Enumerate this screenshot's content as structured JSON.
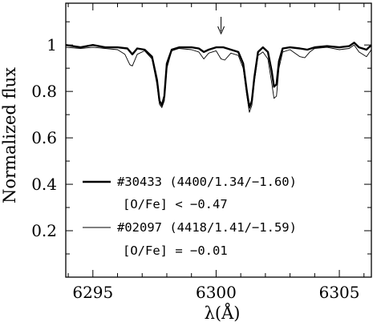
{
  "chart_data": {
    "type": "line",
    "title": "",
    "xlabel": "λ(Å)",
    "ylabel": "Normalized flux",
    "xlim": [
      6293.9,
      6306.3
    ],
    "ylim": [
      0.0,
      1.18
    ],
    "x_ticks": [
      6295,
      6300,
      6305
    ],
    "y_ticks": [
      0.2,
      0.4,
      0.6,
      0.8,
      1
    ],
    "x_tick_labels": [
      "6295",
      "6300",
      "6305"
    ],
    "y_tick_labels": [
      "0.2",
      "0.4",
      "0.6",
      "0.8",
      "1"
    ],
    "grid": false,
    "legend_position": "lower-left",
    "annotation_arrow_x": 6300.2,
    "series": [
      {
        "name": "#30433 (4400/1.34/−1.60)",
        "note": "[O/Fe] < −0.47",
        "style": "thick",
        "color": "#000000",
        "points": [
          [
            6293.9,
            1.0
          ],
          [
            6294.5,
            0.99
          ],
          [
            6295.0,
            1.0
          ],
          [
            6295.5,
            0.99
          ],
          [
            6296.0,
            0.99
          ],
          [
            6296.4,
            0.985
          ],
          [
            6296.6,
            0.96
          ],
          [
            6296.8,
            0.985
          ],
          [
            6297.1,
            0.98
          ],
          [
            6297.4,
            0.95
          ],
          [
            6297.6,
            0.85
          ],
          [
            6297.7,
            0.76
          ],
          [
            6297.8,
            0.74
          ],
          [
            6297.9,
            0.78
          ],
          [
            6298.0,
            0.92
          ],
          [
            6298.2,
            0.98
          ],
          [
            6298.5,
            0.99
          ],
          [
            6299.0,
            0.99
          ],
          [
            6299.3,
            0.985
          ],
          [
            6299.5,
            0.97
          ],
          [
            6299.7,
            0.98
          ],
          [
            6300.0,
            0.99
          ],
          [
            6300.3,
            0.99
          ],
          [
            6300.6,
            0.98
          ],
          [
            6300.9,
            0.97
          ],
          [
            6301.1,
            0.92
          ],
          [
            6301.25,
            0.8
          ],
          [
            6301.35,
            0.73
          ],
          [
            6301.45,
            0.76
          ],
          [
            6301.55,
            0.86
          ],
          [
            6301.7,
            0.97
          ],
          [
            6301.9,
            0.99
          ],
          [
            6302.1,
            0.97
          ],
          [
            6302.25,
            0.89
          ],
          [
            6302.35,
            0.82
          ],
          [
            6302.45,
            0.83
          ],
          [
            6302.55,
            0.93
          ],
          [
            6302.7,
            0.985
          ],
          [
            6303.0,
            0.99
          ],
          [
            6303.4,
            0.985
          ],
          [
            6303.7,
            0.98
          ],
          [
            6304.0,
            0.99
          ],
          [
            6304.5,
            0.995
          ],
          [
            6305.0,
            0.99
          ],
          [
            6305.4,
            0.995
          ],
          [
            6305.6,
            1.01
          ],
          [
            6305.8,
            0.99
          ],
          [
            6306.1,
            0.98
          ],
          [
            6306.3,
            1.0
          ]
        ]
      },
      {
        "name": "#02097 (4418/1.41/−1.59)",
        "note": "[O/Fe] = −0.01",
        "style": "thin",
        "color": "#000000",
        "points": [
          [
            6293.9,
            0.99
          ],
          [
            6294.5,
            0.985
          ],
          [
            6295.0,
            0.99
          ],
          [
            6295.5,
            0.985
          ],
          [
            6296.0,
            0.98
          ],
          [
            6296.3,
            0.96
          ],
          [
            6296.5,
            0.915
          ],
          [
            6296.6,
            0.91
          ],
          [
            6296.8,
            0.96
          ],
          [
            6297.1,
            0.975
          ],
          [
            6297.4,
            0.94
          ],
          [
            6297.6,
            0.83
          ],
          [
            6297.7,
            0.745
          ],
          [
            6297.8,
            0.73
          ],
          [
            6297.9,
            0.76
          ],
          [
            6298.0,
            0.9
          ],
          [
            6298.2,
            0.975
          ],
          [
            6298.5,
            0.985
          ],
          [
            6299.0,
            0.98
          ],
          [
            6299.3,
            0.97
          ],
          [
            6299.5,
            0.94
          ],
          [
            6299.7,
            0.965
          ],
          [
            6300.0,
            0.975
          ],
          [
            6300.2,
            0.94
          ],
          [
            6300.35,
            0.935
          ],
          [
            6300.6,
            0.965
          ],
          [
            6300.9,
            0.955
          ],
          [
            6301.1,
            0.9
          ],
          [
            6301.25,
            0.78
          ],
          [
            6301.35,
            0.71
          ],
          [
            6301.45,
            0.74
          ],
          [
            6301.55,
            0.84
          ],
          [
            6301.7,
            0.955
          ],
          [
            6301.9,
            0.97
          ],
          [
            6302.1,
            0.94
          ],
          [
            6302.25,
            0.84
          ],
          [
            6302.35,
            0.77
          ],
          [
            6302.45,
            0.78
          ],
          [
            6302.55,
            0.9
          ],
          [
            6302.7,
            0.97
          ],
          [
            6303.0,
            0.98
          ],
          [
            6303.4,
            0.95
          ],
          [
            6303.6,
            0.945
          ],
          [
            6303.8,
            0.97
          ],
          [
            6304.0,
            0.985
          ],
          [
            6304.5,
            0.99
          ],
          [
            6305.0,
            0.98
          ],
          [
            6305.4,
            0.985
          ],
          [
            6305.6,
            1.0
          ],
          [
            6305.8,
            0.97
          ],
          [
            6306.1,
            0.95
          ],
          [
            6306.3,
            0.98
          ]
        ]
      }
    ]
  }
}
